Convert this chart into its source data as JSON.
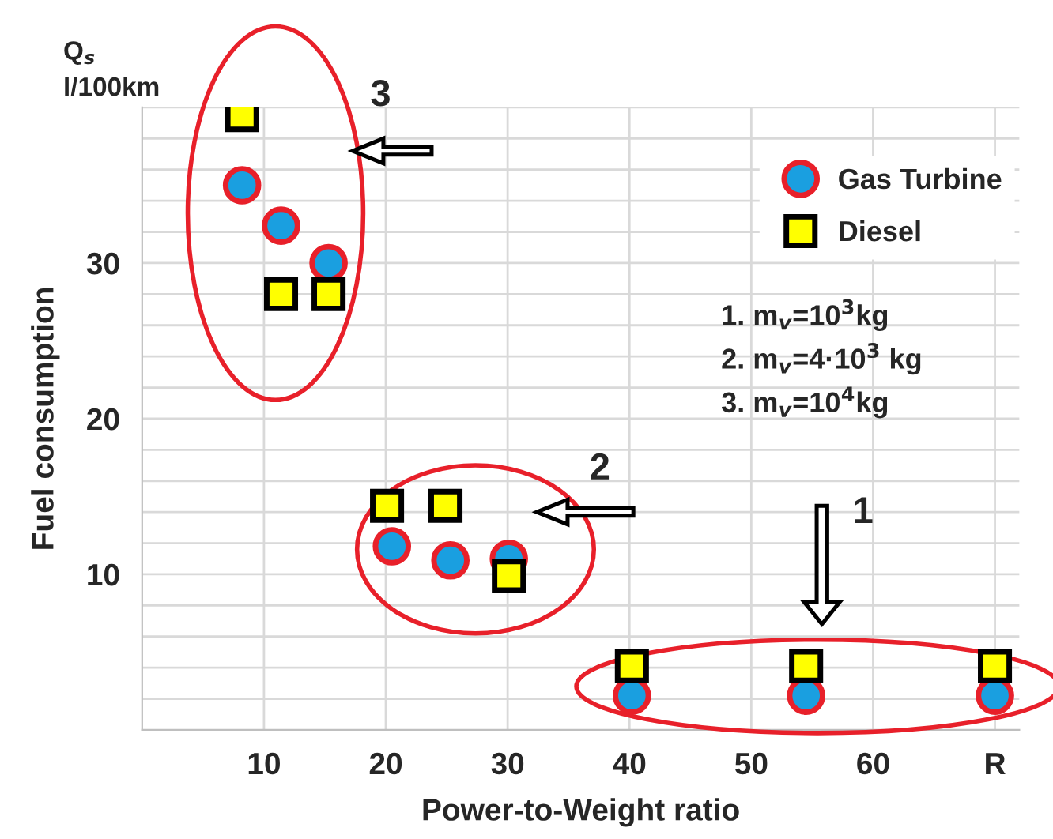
{
  "chart_data": {
    "type": "scatter",
    "xlabel": "Power-to-Weight ratio",
    "ylabel": "Fuel consumption",
    "annotations": [
      "Q$_{s}$\nl/100km",
      "1",
      "2",
      "3",
      "1. m$_{v}$=10$^{3}$kg",
      "2. m$_{v}$=4·10$^{3}$ kg",
      "3. m$_{v}$=10$^{4}$kg"
    ],
    "series": [
      {
        "name": "Gas Turbine",
        "color": "#1a9fe0",
        "marker": "circle",
        "x": [
          8.2,
          11.4,
          15.3,
          20.5,
          25.3,
          30.1,
          40.2,
          54.5,
          70
        ],
        "values": [
          35.0,
          32.4,
          30.0,
          11.8,
          10.9,
          11.0,
          2.2,
          2.2,
          2.2
        ]
      },
      {
        "name": "Diesel",
        "color": "#ffff00",
        "marker": "square",
        "x": [
          8.2,
          11.4,
          15.3,
          20.1,
          24.9,
          30.1,
          40.2,
          54.5,
          70
        ],
        "values": [
          39.5,
          28.0,
          28.0,
          14.4,
          14.4,
          9.9,
          4.1,
          4.1,
          4.1
        ]
      }
    ],
    "xlim": [
      0,
      72
    ],
    "ylim": [
      0,
      40
    ],
    "xticks": [
      10,
      20,
      30,
      40,
      50,
      60,
      {
        "value": 70,
        "label": "R"
      }
    ],
    "yticks": [
      {
        "value": 2,
        "label": null
      },
      {
        "value": 4,
        "label": null
      },
      {
        "value": 6,
        "label": null
      },
      {
        "value": 8,
        "label": null
      },
      10,
      {
        "value": 12,
        "label": null
      },
      {
        "value": 14,
        "label": null
      },
      {
        "value": 16,
        "label": null
      },
      {
        "value": 18,
        "label": null
      },
      20,
      {
        "value": 22,
        "label": null
      },
      {
        "value": 24,
        "label": null
      },
      {
        "value": 26,
        "label": null
      },
      {
        "value": 28,
        "label": null
      },
      30,
      {
        "value": 32,
        "label": null
      },
      {
        "value": 34,
        "label": null
      },
      {
        "value": 36,
        "label": null
      },
      {
        "value": 38,
        "label": null
      },
      {
        "value": 40,
        "label": null
      }
    ],
    "grid": true,
    "legend": "top right"
  }
}
